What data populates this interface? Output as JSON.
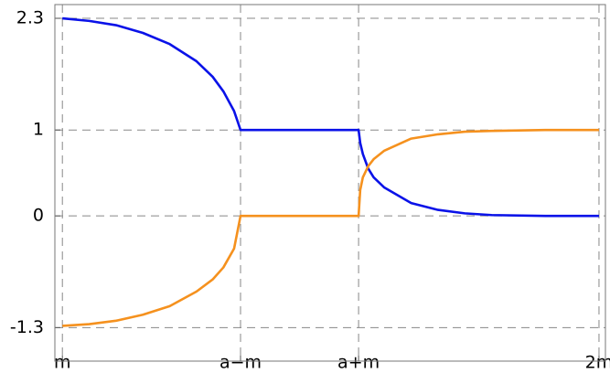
{
  "chart_data": {
    "type": "line",
    "x": [
      0,
      0.05,
      0.1,
      0.15,
      0.2,
      0.25,
      0.28,
      0.3,
      0.32,
      0.332,
      0.552,
      0.555,
      0.56,
      0.57,
      0.58,
      0.6,
      0.65,
      0.7,
      0.75,
      0.8,
      0.9,
      1
    ],
    "series": [
      {
        "color": "#0a12e8",
        "values": [
          2.3,
          2.27,
          2.22,
          2.13,
          2.0,
          1.8,
          1.62,
          1.45,
          1.22,
          1.0,
          1.0,
          0.85,
          0.72,
          0.55,
          0.45,
          0.33,
          0.15,
          0.07,
          0.03,
          0.01,
          0,
          0
        ]
      },
      {
        "color": "#f5911e",
        "values": [
          -1.28,
          -1.26,
          -1.22,
          -1.15,
          -1.05,
          -0.88,
          -0.74,
          -0.6,
          -0.38,
          0,
          0,
          0.3,
          0.45,
          0.58,
          0.66,
          0.76,
          0.9,
          0.95,
          0.98,
          0.99,
          1.0,
          1.0
        ]
      }
    ],
    "xlim": [
      -0.014,
      1.012
    ],
    "ylim": [
      -1.69,
      2.46
    ],
    "xticks": [
      {
        "value": 0,
        "label": "m"
      },
      {
        "value": 0.332,
        "label": "a−m"
      },
      {
        "value": 0.552,
        "label": "a+m"
      },
      {
        "value": 1,
        "label": "2m"
      }
    ],
    "yticks": [
      -1.3,
      0,
      1,
      2.3
    ],
    "grid": true
  }
}
